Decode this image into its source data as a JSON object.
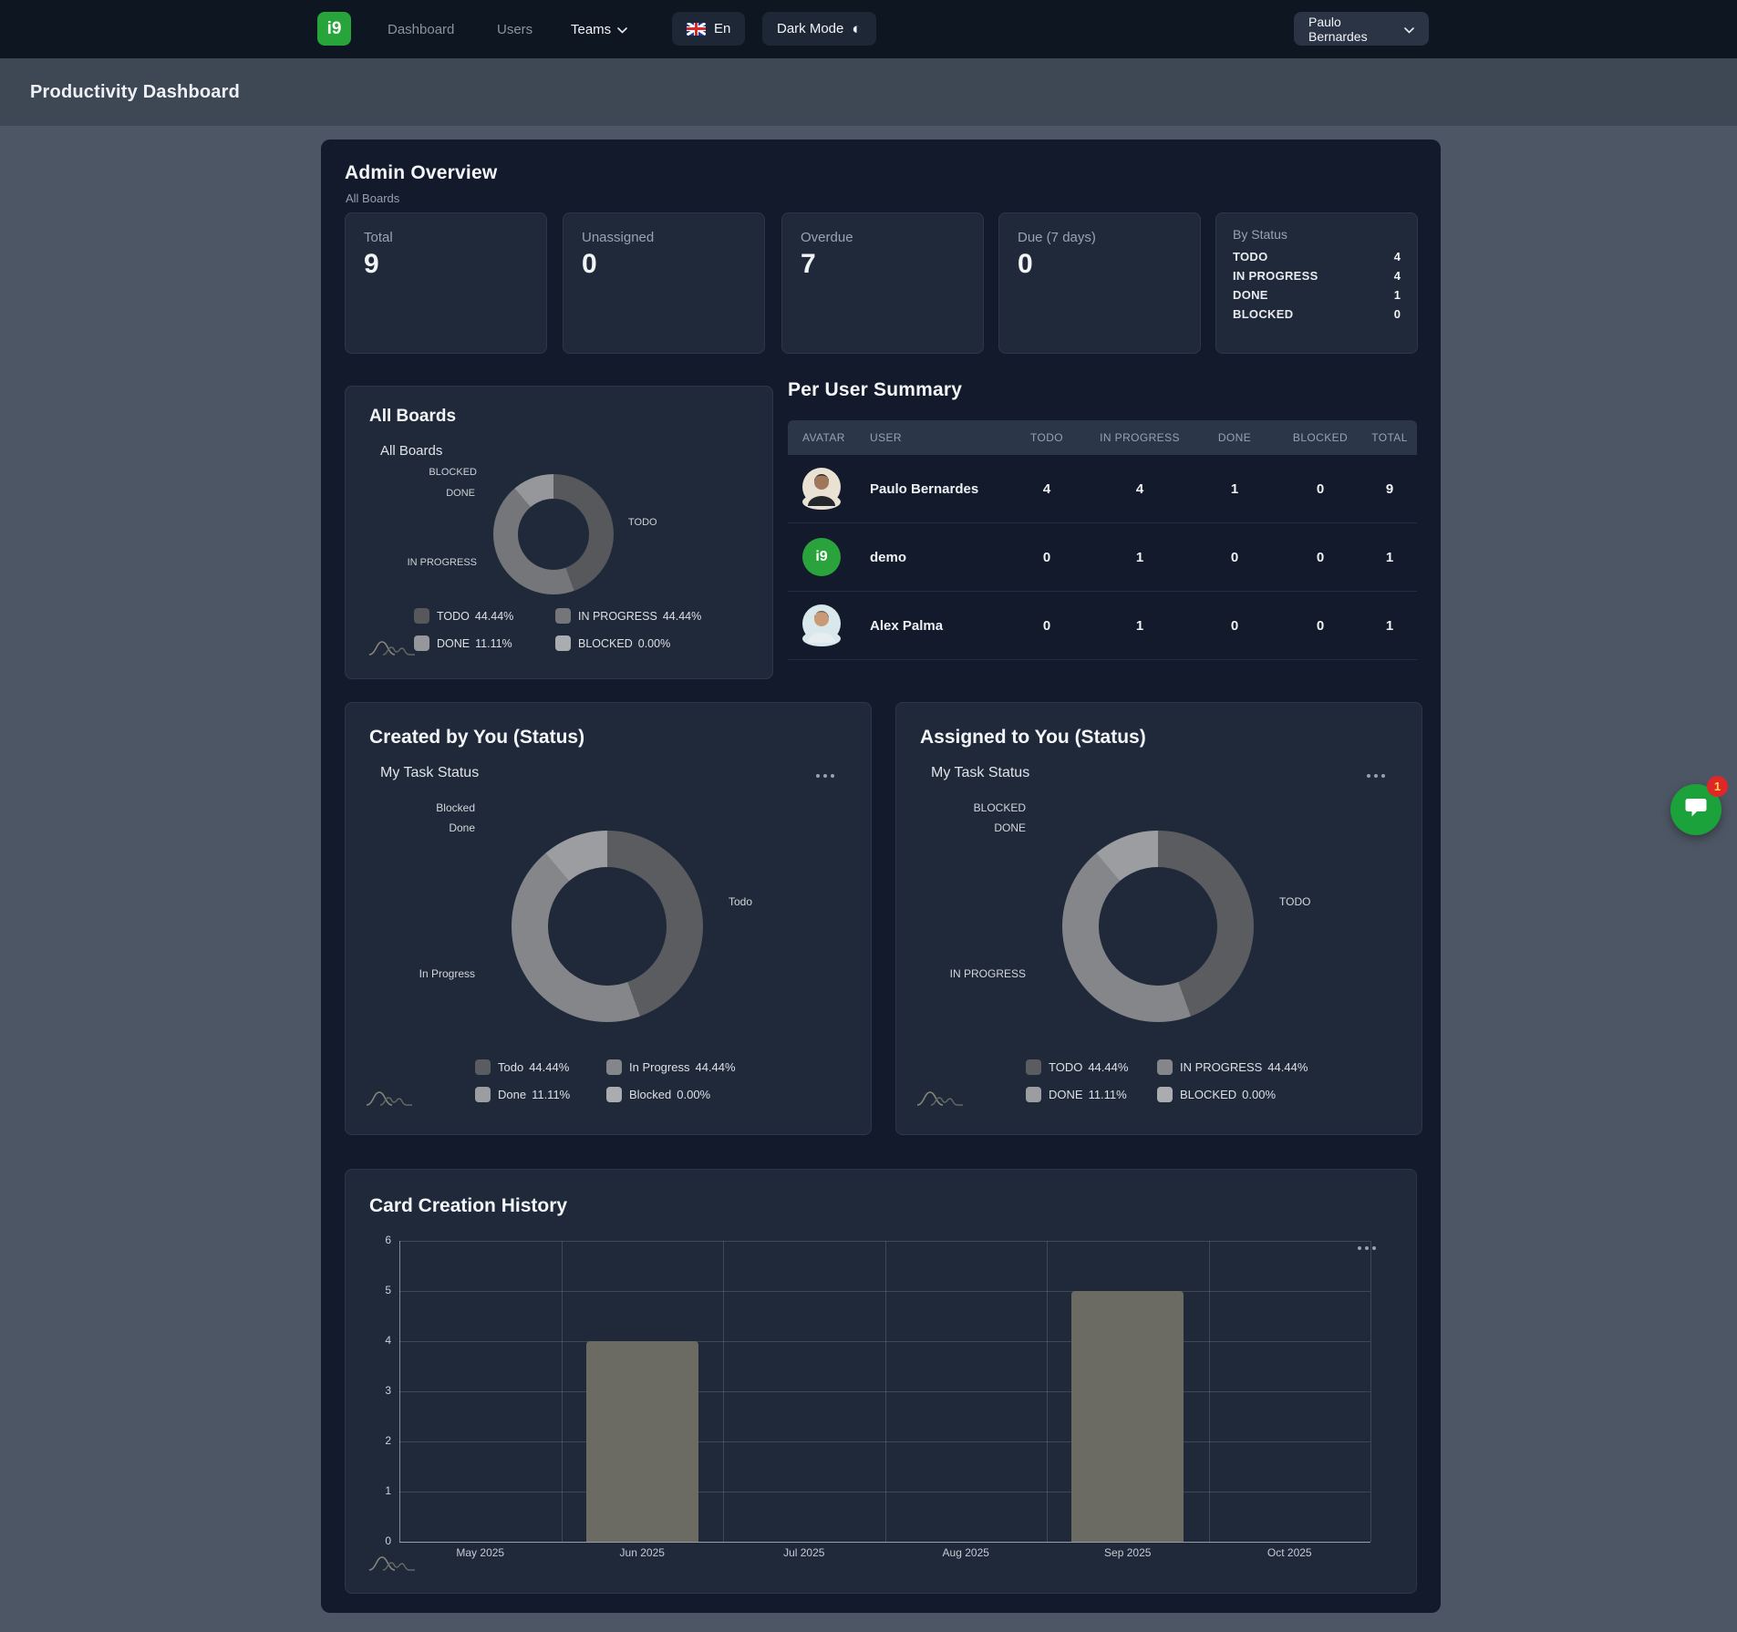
{
  "nav": {
    "logo_text": "i9",
    "items": [
      {
        "label": "Dashboard"
      },
      {
        "label": "Users"
      },
      {
        "label": "Teams"
      }
    ],
    "language": {
      "label": "En"
    },
    "dark_mode_label": "Dark Mode",
    "dark_mode_icon": "◐",
    "user_menu_label": "Paulo Bernardes"
  },
  "header": {
    "title": "Productivity Dashboard"
  },
  "admin_overview": {
    "title": "Admin Overview",
    "subtitle": "All Boards",
    "stats": [
      {
        "label": "Total",
        "value": "9"
      },
      {
        "label": "Unassigned",
        "value": "0"
      },
      {
        "label": "Overdue",
        "value": "7"
      },
      {
        "label": "Due (7 days)",
        "value": "0"
      }
    ],
    "by_status": {
      "title": "By Status",
      "rows": [
        {
          "label": "TODO",
          "value": "4"
        },
        {
          "label": "IN PROGRESS",
          "value": "4"
        },
        {
          "label": "DONE",
          "value": "1"
        },
        {
          "label": "BLOCKED",
          "value": "0"
        }
      ]
    }
  },
  "per_user_summary": {
    "title": "Per User Summary",
    "columns": [
      "AVATAR",
      "USER",
      "TODO",
      "IN PROGRESS",
      "DONE",
      "BLOCKED",
      "TOTAL"
    ],
    "rows": [
      {
        "user": "Paulo Bernardes",
        "avatar": "photo-male-dark-hair",
        "todo": "4",
        "in_progress": "4",
        "done": "1",
        "blocked": "0",
        "total": "9"
      },
      {
        "user": "demo",
        "avatar": "green-logo-circle",
        "avatar_text": "i9",
        "todo": "0",
        "in_progress": "1",
        "done": "0",
        "blocked": "0",
        "total": "1"
      },
      {
        "user": "Alex Palma",
        "avatar": "photo-male-light-shirt",
        "todo": "0",
        "in_progress": "1",
        "done": "0",
        "blocked": "0",
        "total": "1"
      }
    ]
  },
  "chart_data": [
    {
      "type": "pie",
      "card_title": "All Boards",
      "chart_title": "All Boards",
      "slices": [
        {
          "label": "TODO",
          "pct": 44.44,
          "color": "#56585b"
        },
        {
          "label": "IN PROGRESS",
          "pct": 44.44,
          "color": "#747679"
        },
        {
          "label": "DONE",
          "pct": 11.11,
          "color": "#95979a"
        },
        {
          "label": "BLOCKED",
          "pct": 0.0,
          "color": "#aaacaf"
        }
      ],
      "legend": [
        {
          "label": "TODO",
          "pct": "44.44%"
        },
        {
          "label": "IN PROGRESS",
          "pct": "44.44%"
        },
        {
          "label": "DONE",
          "pct": "11.11%"
        },
        {
          "label": "BLOCKED",
          "pct": "0.00%"
        }
      ]
    },
    {
      "type": "pie",
      "card_title": "Created by You (Status)",
      "chart_title": "My Task Status",
      "slices": [
        {
          "label": "Todo",
          "pct": 44.44,
          "color": "#5a5c5f"
        },
        {
          "label": "In Progress",
          "pct": 44.44,
          "color": "#84868a"
        },
        {
          "label": "Done",
          "pct": 11.11,
          "color": "#9b9da0"
        },
        {
          "label": "Blocked",
          "pct": 0.0,
          "color": "#aaacaf"
        }
      ],
      "legend": [
        {
          "label": "Todo",
          "pct": "44.44%"
        },
        {
          "label": "In Progress",
          "pct": "44.44%"
        },
        {
          "label": "Done",
          "pct": "11.11%"
        },
        {
          "label": "Blocked",
          "pct": "0.00%"
        }
      ]
    },
    {
      "type": "pie",
      "card_title": "Assigned to You (Status)",
      "chart_title": "My Task Status",
      "slices": [
        {
          "label": "TODO",
          "pct": 44.44,
          "color": "#5a5c5f"
        },
        {
          "label": "IN PROGRESS",
          "pct": 44.44,
          "color": "#84868a"
        },
        {
          "label": "DONE",
          "pct": 11.11,
          "color": "#9b9da0"
        },
        {
          "label": "BLOCKED",
          "pct": 0.0,
          "color": "#aaacaf"
        }
      ],
      "legend": [
        {
          "label": "TODO",
          "pct": "44.44%"
        },
        {
          "label": "IN PROGRESS",
          "pct": "44.44%"
        },
        {
          "label": "DONE",
          "pct": "11.11%"
        },
        {
          "label": "BLOCKED",
          "pct": "0.00%"
        }
      ]
    },
    {
      "type": "bar",
      "card_title": "Card Creation History",
      "categories": [
        "May 2025",
        "Jun 2025",
        "Jul 2025",
        "Aug 2025",
        "Sep 2025",
        "Oct 2025"
      ],
      "values": [
        0,
        4,
        0,
        0,
        5,
        0
      ],
      "ylim": [
        0,
        6
      ],
      "yticks": [
        0,
        1,
        2,
        3,
        4,
        5,
        6
      ],
      "bar_color": "#6b6b63",
      "grid": true,
      "legend_position": "none"
    }
  ],
  "fab": {
    "badge": "1"
  },
  "colors": {
    "brand_green": "#27a53b",
    "fab_green": "#1ca23a",
    "badge_red": "#e02727",
    "panel_bg": "#121a2b",
    "card_bg": "#1f2939",
    "bar_gray": "#6b6b63"
  }
}
